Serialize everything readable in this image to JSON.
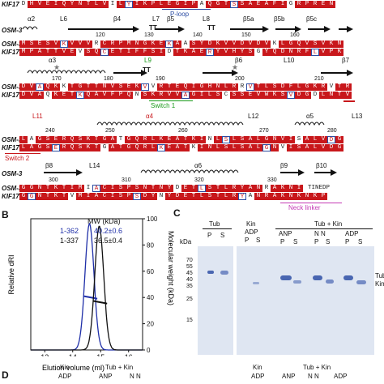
{
  "panel_a": {
    "rows": [
      {
        "label": "KIF17",
        "seq": "DHVEIQYNTLVILYIKPLEGIPAQGTSSAEAFIGRPREN"
      },
      {
        "label": "OSM-3",
        "seq": "MSESVKVVVRCRPMNGKEKAASYDKVVDVDVKLGQVSVKN"
      },
      {
        "label": "KIF17",
        "seq": "MPATTVEVSQCETIFFSIDTKAERYVHYSGYQDNRFLVPK"
      },
      {
        "label": "OSM-3",
        "seq": "DVAQKKTGTTNVSEKVVRTEQIGHNLRRVTLSDFLGKRVTR"
      },
      {
        "label": "KIF17",
        "seq": "DVAQKETKQAVFPQNSKRVVAGILSCSSEVWKSVDGDLNTV"
      },
      {
        "label": "OSM-3",
        "seq": "LAGSERQSKTGATGQRLKEATKINLSLSALGNVISALVDG"
      },
      {
        "label": "KIF17",
        "seq": "LAGSERQSKTGATGQRLKEATKINLSLSALGNVISALVDG"
      },
      {
        "label": "OSM-3",
        "seq": "GGNTKTIMIACISPSNTNYDETLSTLRYANRAKNI"
      },
      {
        "label": "KIF17",
        "seq": "GGNTKTVMIACISPSDYNYDETLSTLRYANRAKNKNKP"
      }
    ],
    "labels": {
      "p_loop": "P-loop",
      "switch1": "Switch 1",
      "switch2": "Switch 2",
      "neck_linker": "Neck linker",
      "L11": "L11",
      "alpha4": "α4",
      "L9": "L9",
      "tail": "TINEDP"
    },
    "ss_row1": [
      "α2",
      "L6",
      "β4",
      "L7",
      "β5",
      "L8",
      "β5a",
      "β5b",
      "β5c"
    ],
    "ss_row1_nums": [
      "120",
      "130",
      "140",
      "150",
      "160"
    ],
    "ss_row2": [
      "α3",
      "L9",
      "β6",
      "L10",
      "β7"
    ],
    "ss_row2_nums": [
      "170",
      "180",
      "190",
      "200",
      "210"
    ],
    "ss_row3": [
      "L11",
      "α4",
      "L12",
      "α5",
      "L13"
    ],
    "ss_row3_nums": [
      "240",
      "250",
      "260",
      "270",
      "280"
    ],
    "ss_row4": [
      "β8",
      "L14",
      "α6",
      "β9",
      "β10"
    ],
    "ss_row4_nums": [
      "300",
      "310",
      "320",
      "330"
    ],
    "tt": "TT"
  },
  "panel_b": {
    "letter": "B",
    "ylabel_left": "Relative dRI",
    "ylabel_right": "Molecular weight (kDa)",
    "xlabel": "Elution volume (ml)",
    "mw_header": "MW (kDa)",
    "series_labels": [
      "1-362",
      "1-337"
    ],
    "series_mw": [
      "40.2±0.6",
      "36.5±0.4"
    ],
    "colors": {
      "s1": "#1f2fa8",
      "s2": "#111111"
    }
  },
  "chart_data": {
    "type": "line",
    "xlabel": "Elution volume (ml)",
    "ylabel": "Relative dRI",
    "y2label": "Molecular weight (kDa)",
    "xlim": [
      12.5,
      16.5
    ],
    "x_ticks": [
      13,
      14,
      15,
      16
    ],
    "y2lim": [
      0,
      100
    ],
    "y2_ticks": [
      0,
      20,
      40,
      60,
      80,
      100
    ],
    "series": [
      {
        "name": "1-362",
        "peak_x": 14.6,
        "peak_height": 1.0,
        "mw": 40.2
      },
      {
        "name": "1-337",
        "peak_x": 14.95,
        "peak_height": 0.98,
        "mw": 36.5
      }
    ]
  },
  "panel_c": {
    "letter": "C",
    "kda": "kDa",
    "markers": [
      "70",
      "55",
      "45",
      "40",
      "35",
      "25",
      "15"
    ],
    "tub_group": "Tub",
    "tub_lanes": [
      "P",
      "S"
    ],
    "kin_group": "Kin",
    "kin_sub": "ADP",
    "kin_lanes": [
      "P",
      "S"
    ],
    "tubkin_group": "Tub + Kin",
    "nuc": [
      "ANP",
      "N N",
      "ADP"
    ],
    "tubkin_lanes": [
      "P",
      "S",
      "P",
      "S",
      "P",
      "S"
    ],
    "right_labels": [
      "Tub",
      "Kin"
    ]
  },
  "panel_d": {
    "letter": "D",
    "kin": "Kin",
    "adp": "ADP",
    "tubkin": "Tub + Kin",
    "anp": "ANP",
    "nn": "N N"
  }
}
